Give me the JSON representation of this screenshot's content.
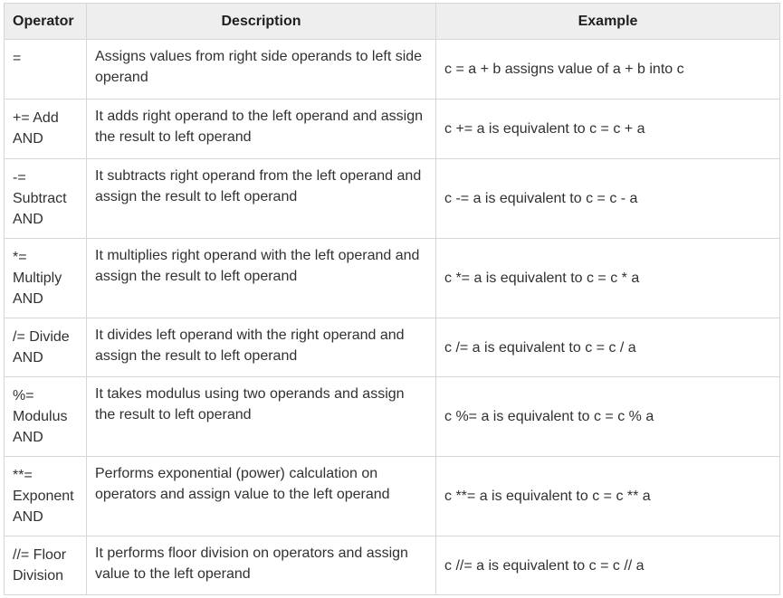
{
  "table": {
    "headers": [
      "Operator",
      "Description",
      "Example"
    ],
    "rows": [
      {
        "operator": "=",
        "description": "Assigns values from right side operands to left side operand",
        "example": "c = a + b assigns value of a + b into c"
      },
      {
        "operator": "+= Add AND",
        "description": "It adds right operand to the left operand and assign the result to left operand",
        "example": "c += a is equivalent to c = c + a"
      },
      {
        "operator": "-= Subtract AND",
        "description": "It subtracts right operand from the left operand and assign the result to left operand",
        "example": "c -= a is equivalent to c = c - a"
      },
      {
        "operator": "*= Multiply AND",
        "description": "It multiplies right operand with the left operand and assign the result to left operand",
        "example": "c *= a is equivalent to c = c * a"
      },
      {
        "operator": "/= Divide AND",
        "description": "It divides left operand with the right operand and assign the result to left operand",
        "example": "c /= a is equivalent to c = c / a"
      },
      {
        "operator": "%= Modulus AND",
        "description": "It takes modulus using two operands and assign the result to left operand",
        "example": "c %= a is equivalent to c = c % a"
      },
      {
        "operator": "**= Exponent AND",
        "description": "Performs exponential (power) calculation on operators and assign value to the left operand",
        "example": "c **= a is equivalent to c = c ** a"
      },
      {
        "operator": "//= Floor Division",
        "description": "It performs floor division on operators and assign value to the left operand",
        "example": "c //= a is equivalent to c = c // a"
      }
    ]
  }
}
